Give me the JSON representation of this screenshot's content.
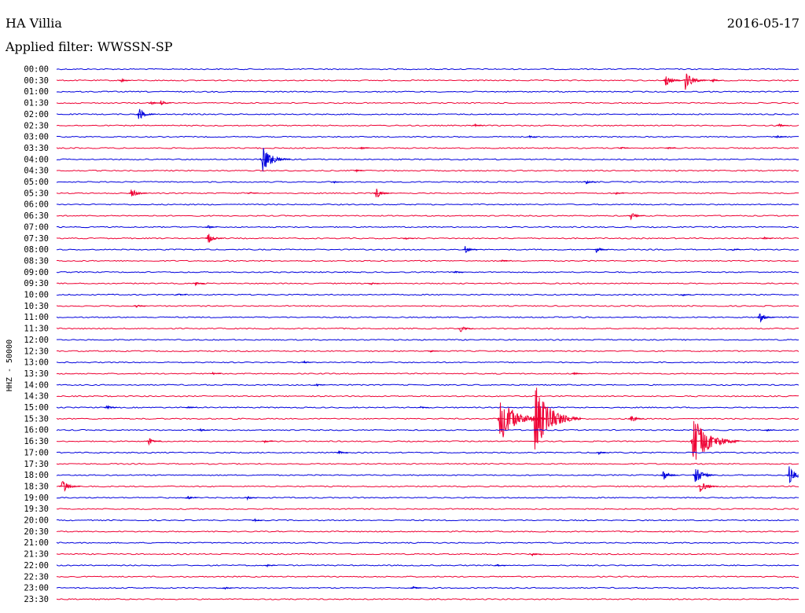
{
  "header": {
    "station": "HA Villia",
    "date": "2016-05-17",
    "filter": "Applied filter: WWSSN-SP"
  },
  "chart_data": {
    "type": "line",
    "title": "HA Villia",
    "subtitle": "Applied filter: WWSSN-SP",
    "date": "2016-05-17",
    "ylabel": "HHZ - 50000",
    "xlabel": "",
    "grid": false,
    "legend": "none",
    "trace_colors": [
      "#0000dd",
      "#ee0033"
    ],
    "rows": [
      {
        "label": "00:00",
        "events": []
      },
      {
        "label": "00:30",
        "events": [
          {
            "minute": 2.6,
            "amp": 3
          },
          {
            "minute": 24.6,
            "amp": 9
          },
          {
            "minute": 25.4,
            "amp": 13
          },
          {
            "minute": 26.5,
            "amp": 3
          }
        ]
      },
      {
        "label": "01:00",
        "events": []
      },
      {
        "label": "01:30",
        "events": [
          {
            "minute": 3.8,
            "amp": 3
          },
          {
            "minute": 4.2,
            "amp": 4
          }
        ]
      },
      {
        "label": "02:00",
        "events": [
          {
            "minute": 3.3,
            "amp": 9
          }
        ]
      },
      {
        "label": "02:30",
        "events": [
          {
            "minute": 16.9,
            "amp": 2
          },
          {
            "minute": 29.2,
            "amp": 3
          }
        ]
      },
      {
        "label": "03:00",
        "events": [
          {
            "minute": 19.1,
            "amp": 2
          },
          {
            "minute": 29.1,
            "amp": 3
          }
        ]
      },
      {
        "label": "03:30",
        "events": [
          {
            "minute": 12.3,
            "amp": 2
          },
          {
            "minute": 22.8,
            "amp": 2
          },
          {
            "minute": 24.7,
            "amp": 2
          }
        ]
      },
      {
        "label": "04:00",
        "events": [
          {
            "minute": 8.3,
            "amp": 18
          }
        ]
      },
      {
        "label": "04:30",
        "events": [
          {
            "minute": 12.1,
            "amp": 2
          }
        ]
      },
      {
        "label": "05:00",
        "events": [
          {
            "minute": 11.2,
            "amp": 2
          },
          {
            "minute": 21.4,
            "amp": 3
          }
        ]
      },
      {
        "label": "05:30",
        "events": [
          {
            "minute": 3.0,
            "amp": 8
          },
          {
            "minute": 12.9,
            "amp": 8
          },
          {
            "minute": 7.8,
            "amp": 2
          },
          {
            "minute": 22.6,
            "amp": 2
          }
        ]
      },
      {
        "label": "06:00",
        "events": []
      },
      {
        "label": "06:30",
        "events": [
          {
            "minute": 23.2,
            "amp": 6
          }
        ]
      },
      {
        "label": "07:00",
        "events": [
          {
            "minute": 6.1,
            "amp": 3
          }
        ]
      },
      {
        "label": "07:30",
        "events": [
          {
            "minute": 6.1,
            "amp": 8
          },
          {
            "minute": 14.1,
            "amp": 2
          },
          {
            "minute": 28.6,
            "amp": 2
          }
        ]
      },
      {
        "label": "08:00",
        "events": [
          {
            "minute": 16.5,
            "amp": 5
          },
          {
            "minute": 21.8,
            "amp": 5
          },
          {
            "minute": 27.3,
            "amp": 2
          }
        ]
      },
      {
        "label": "08:30",
        "events": [
          {
            "minute": 18.0,
            "amp": 2
          }
        ]
      },
      {
        "label": "09:00",
        "events": [
          {
            "minute": 16.1,
            "amp": 2
          }
        ]
      },
      {
        "label": "09:30",
        "events": [
          {
            "minute": 5.6,
            "amp": 3
          },
          {
            "minute": 12.7,
            "amp": 2
          }
        ]
      },
      {
        "label": "10:00",
        "events": [
          {
            "minute": 4.9,
            "amp": 2
          },
          {
            "minute": 25.3,
            "amp": 2
          }
        ]
      },
      {
        "label": "10:30",
        "events": [
          {
            "minute": 3.2,
            "amp": 3
          }
        ]
      },
      {
        "label": "11:00",
        "events": [
          {
            "minute": 28.4,
            "amp": 8
          }
        ]
      },
      {
        "label": "11:30",
        "events": [
          {
            "minute": 16.3,
            "amp": 6
          }
        ]
      },
      {
        "label": "12:00",
        "events": []
      },
      {
        "label": "12:30",
        "events": [
          {
            "minute": 15.1,
            "amp": 2
          }
        ]
      },
      {
        "label": "13:00",
        "events": [
          {
            "minute": 10.0,
            "amp": 2
          }
        ]
      },
      {
        "label": "13:30",
        "events": [
          {
            "minute": 6.3,
            "amp": 2
          },
          {
            "minute": 20.9,
            "amp": 2
          }
        ]
      },
      {
        "label": "14:00",
        "events": [
          {
            "minute": 10.5,
            "amp": 2
          }
        ]
      },
      {
        "label": "14:30",
        "events": []
      },
      {
        "label": "15:00",
        "events": [
          {
            "minute": 2.0,
            "amp": 4
          },
          {
            "minute": 5.3,
            "amp": 2
          },
          {
            "minute": 14.7,
            "amp": 2
          }
        ]
      },
      {
        "label": "15:30",
        "events": [
          {
            "minute": 17.9,
            "amp": 32
          },
          {
            "minute": 19.3,
            "amp": 48
          },
          {
            "minute": 23.2,
            "amp": 6
          }
        ]
      },
      {
        "label": "16:00",
        "events": [
          {
            "minute": 5.8,
            "amp": 3
          },
          {
            "minute": 28.7,
            "amp": 2
          }
        ]
      },
      {
        "label": "16:30",
        "events": [
          {
            "minute": 3.7,
            "amp": 6
          },
          {
            "minute": 8.4,
            "amp": 2
          },
          {
            "minute": 25.7,
            "amp": 34
          }
        ]
      },
      {
        "label": "17:00",
        "events": [
          {
            "minute": 11.4,
            "amp": 3
          },
          {
            "minute": 21.9,
            "amp": 3
          }
        ]
      },
      {
        "label": "17:30",
        "events": []
      },
      {
        "label": "18:00",
        "events": [
          {
            "minute": 24.5,
            "amp": 8
          },
          {
            "minute": 25.8,
            "amp": 12
          },
          {
            "minute": 29.6,
            "amp": 12
          }
        ]
      },
      {
        "label": "18:30",
        "events": [
          {
            "minute": 0.2,
            "amp": 10
          },
          {
            "minute": 26.0,
            "amp": 10
          }
        ]
      },
      {
        "label": "19:00",
        "events": [
          {
            "minute": 5.3,
            "amp": 3
          },
          {
            "minute": 7.7,
            "amp": 3
          }
        ]
      },
      {
        "label": "19:30",
        "events": []
      },
      {
        "label": "20:00",
        "events": [
          {
            "minute": 8.0,
            "amp": 2
          }
        ]
      },
      {
        "label": "20:30",
        "events": []
      },
      {
        "label": "21:00",
        "events": []
      },
      {
        "label": "21:30",
        "events": [
          {
            "minute": 19.2,
            "amp": 3
          }
        ]
      },
      {
        "label": "22:00",
        "events": [
          {
            "minute": 8.5,
            "amp": 2
          },
          {
            "minute": 17.8,
            "amp": 2
          }
        ]
      },
      {
        "label": "22:30",
        "events": []
      },
      {
        "label": "23:00",
        "events": [
          {
            "minute": 14.4,
            "amp": 3
          },
          {
            "minute": 6.8,
            "amp": 2
          }
        ]
      },
      {
        "label": "23:30",
        "events": []
      }
    ]
  }
}
